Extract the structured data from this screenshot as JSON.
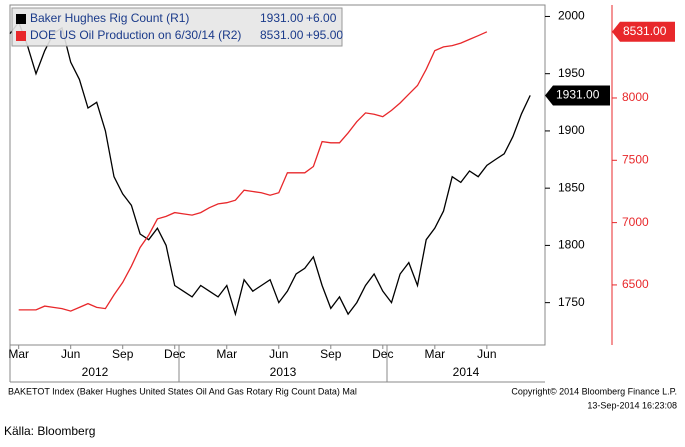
{
  "chart_data": {
    "type": "line",
    "categories": [
      null,
      "Mar",
      null,
      null,
      null,
      null,
      null,
      "Jun",
      null,
      null,
      null,
      null,
      null,
      "Sep",
      null,
      null,
      null,
      null,
      null,
      "Dec",
      null,
      null,
      null,
      null,
      null,
      "Mar",
      null,
      null,
      null,
      null,
      null,
      "Jun",
      null,
      null,
      null,
      null,
      null,
      "Sep",
      null,
      null,
      null,
      null,
      null,
      "Dec",
      null,
      null,
      null,
      null,
      null,
      "Mar",
      null,
      null,
      null,
      null,
      null,
      "Jun",
      null,
      null,
      null,
      null,
      null
    ],
    "years": [
      "2012",
      "2013",
      "2014"
    ],
    "series": [
      {
        "name": "Baker Hughes Rig Count (R1)",
        "color": "#000000",
        "axis": "y",
        "last_label": "1931.00",
        "change": "+6.00",
        "values": [
          1985,
          1995,
          1975,
          1950,
          1970,
          1985,
          1990,
          1960,
          1945,
          1920,
          1925,
          1900,
          1860,
          1845,
          1835,
          1810,
          1805,
          1815,
          1800,
          1765,
          1760,
          1755,
          1765,
          1760,
          1755,
          1765,
          1740,
          1770,
          1760,
          1765,
          1770,
          1750,
          1760,
          1775,
          1780,
          1790,
          1765,
          1745,
          1755,
          1740,
          1750,
          1765,
          1775,
          1760,
          1750,
          1775,
          1785,
          1765,
          1805,
          1815,
          1830,
          1860,
          1855,
          1865,
          1860,
          1870,
          1875,
          1880,
          1895,
          1915,
          1931
        ]
      },
      {
        "name": "DOE US Oil Production on 6/30/14 (R2)",
        "color": "#e8282b",
        "axis": "y2",
        "last_label": "8531.00",
        "change": "+95.00",
        "values": [
          null,
          6300,
          6300,
          6300,
          6330,
          6320,
          6310,
          6290,
          6320,
          6350,
          6320,
          6310,
          6420,
          6520,
          6650,
          6800,
          6900,
          7030,
          7050,
          7080,
          7070,
          7060,
          7080,
          7120,
          7150,
          7160,
          7180,
          7260,
          7250,
          7240,
          7220,
          7240,
          7400,
          7400,
          7400,
          7450,
          7650,
          7640,
          7640,
          7720,
          7810,
          7880,
          7870,
          7850,
          7900,
          7960,
          8030,
          8100,
          8230,
          8380,
          8410,
          8420,
          8440,
          8470,
          8500,
          8531,
          null,
          null,
          null,
          null,
          null
        ]
      }
    ],
    "ylim": [
      1713,
      2010
    ],
    "yticks": [
      1750,
      1800,
      1850,
      1900,
      1950,
      2000
    ],
    "y2lim": [
      6018,
      8746
    ],
    "y2ticks": [
      6500,
      7000,
      7500,
      8000
    ],
    "grid": false,
    "legend": "top-left",
    "footer_left": "BAKETOT Index (Baker Hughes United States Oil And Gas Rotary Rig Count Data) Mal",
    "copyright": "Copyright© 2014 Bloomberg Finance L.P.",
    "timestamp": "13-Sep-2014 16:23:08",
    "source": "Källa: Bloomberg"
  }
}
